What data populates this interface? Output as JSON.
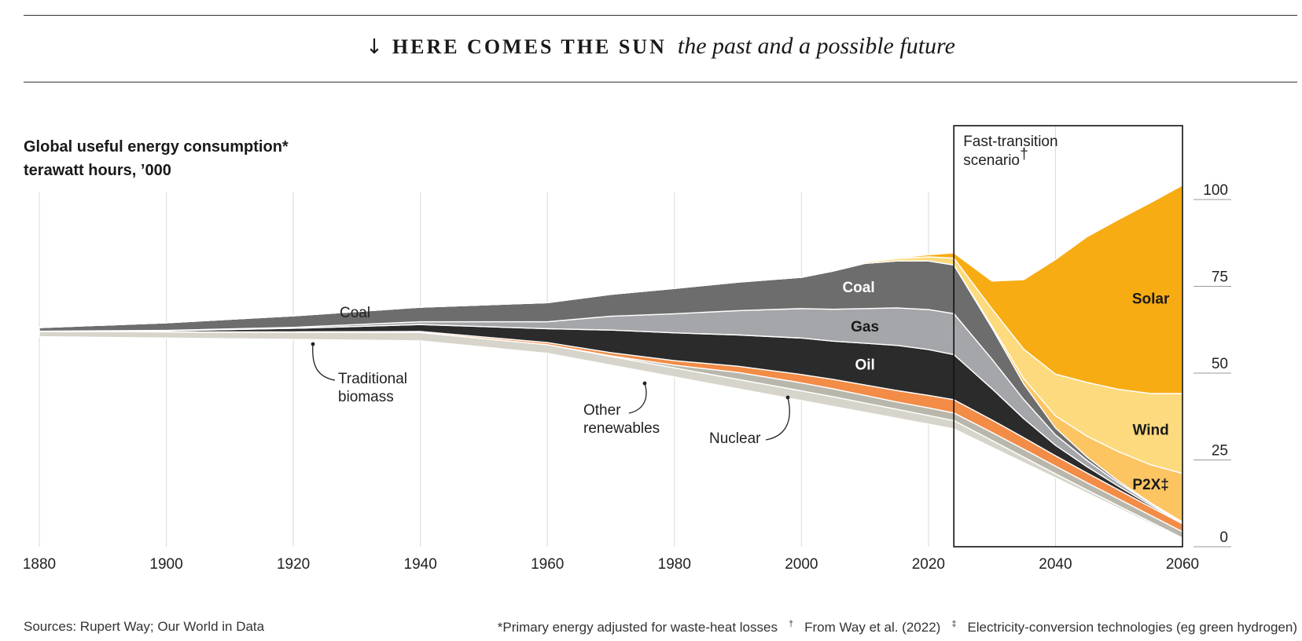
{
  "header": {
    "arrow_glyph": "↓",
    "kicker": "HERE COMES THE SUN",
    "deck": "the past and a possible future"
  },
  "chart_title": {
    "line1": "Global useful energy consumption*",
    "line2": "terawatt hours, ’000"
  },
  "scenario_box": {
    "label_line1": "Fast-transition",
    "label_line2": "scenario",
    "label_mark": "†",
    "x_range": [
      2024,
      2060
    ]
  },
  "footer": {
    "sources": "Sources: Rupert Way; Our World in Data",
    "note_primary": "*Primary energy adjusted for waste-heat losses",
    "note_way_mark": "†",
    "note_way": "From Way et al. (2022)",
    "note_p2x_mark": "‡",
    "note_p2x": "Electricity-conversion technologies (eg green hydrogen)"
  },
  "colors": {
    "solar": "#f7ac14",
    "wind": "#fdda7e",
    "p2x": "#fcc562",
    "oil": "#2b2b2b",
    "coal_historic": "#6d6d6d",
    "coal_late": "#7b7b7d",
    "gas": "#a5a6a9",
    "other_renewables": "#f28c46",
    "nuclear": "#b9b7ac",
    "traditional_biomass": "#d7d5cb",
    "gridline": "#d9d9d9",
    "text": "#1a1a1a"
  },
  "chart_data": {
    "type": "area",
    "title": "Global useful energy consumption*",
    "subtitle": "terawatt hours, ’000",
    "x_axis": {
      "min": 1880,
      "max": 2060,
      "ticks": [
        1880,
        1900,
        1920,
        1940,
        1960,
        1980,
        2000,
        2020,
        2040,
        2060
      ],
      "tick_labels": [
        "1880",
        "1900",
        "1920",
        "1940",
        "1960",
        "1980",
        "2000",
        "2020",
        "2040",
        "2060"
      ]
    },
    "y_axis": {
      "min": 0,
      "max": 100,
      "ticks": [
        0,
        25,
        50,
        75,
        100
      ],
      "tick_labels": [
        "0",
        "25",
        "50",
        "75",
        "100"
      ],
      "position": "right"
    },
    "grid": {
      "vertical": true,
      "horizontal": false
    },
    "layout_note": "streamgraph",
    "x": [
      1880,
      1900,
      1920,
      1940,
      1960,
      1970,
      1980,
      1990,
      2000,
      2005,
      2010,
      2015,
      2020,
      2024,
      2030,
      2035,
      2040,
      2045,
      2050,
      2055,
      2060
    ],
    "series": [
      {
        "name": "Traditional biomass",
        "color": "#d7d5cb",
        "ordering": "bottom",
        "values": [
          1.5,
          1.8,
          2.1,
          2.4,
          2.5,
          2.5,
          2.6,
          2.7,
          2.8,
          2.8,
          2.7,
          2.6,
          2.5,
          2.4,
          2.0,
          1.6,
          1.2,
          0.9,
          0.7,
          0.5,
          0.3
        ]
      },
      {
        "name": "Nuclear",
        "color": "#b9b7ac",
        "values": [
          0,
          0,
          0,
          0,
          0,
          0.2,
          0.8,
          2.0,
          2.3,
          2.3,
          2.2,
          2.1,
          2.2,
          2.2,
          2.3,
          2.3,
          2.2,
          2.1,
          2.0,
          1.9,
          1.8
        ]
      },
      {
        "name": "Other renewables",
        "color": "#f28c46",
        "values": [
          0,
          0,
          0.1,
          0.3,
          0.6,
          0.9,
          1.3,
          1.8,
          2.4,
          2.7,
          3.0,
          3.3,
          3.6,
          3.8,
          3.6,
          3.3,
          3.0,
          2.8,
          2.6,
          2.4,
          2.3
        ]
      },
      {
        "name": "Oil",
        "color": "#2b2b2b",
        "values": [
          0.1,
          0.3,
          1.0,
          2.0,
          4.0,
          6.5,
          8.0,
          9.0,
          10.5,
          11.0,
          12.0,
          13.0,
          13.2,
          13.0,
          9.0,
          5.5,
          3.0,
          1.8,
          1.0,
          0.5,
          0.2
        ]
      },
      {
        "name": "Gas",
        "color": "#a5a6a9",
        "values": [
          0,
          0.1,
          0.3,
          0.8,
          2.0,
          4.0,
          5.5,
          7.0,
          8.5,
          9.2,
          10.0,
          10.8,
          11.5,
          11.8,
          8.5,
          5.5,
          3.0,
          1.8,
          1.0,
          0.5,
          0.2
        ]
      },
      {
        "name": "Coal",
        "color": "#6d6d6d",
        "values": [
          1.0,
          2.2,
          3.3,
          4.2,
          5.5,
          6.3,
          7.3,
          8.2,
          9.0,
          11.0,
          13.0,
          13.5,
          14.0,
          14.0,
          9.0,
          4.5,
          2.0,
          1.0,
          0.5,
          0.2,
          0.1
        ]
      },
      {
        "name": "P2X‡",
        "color": "#fcc562",
        "values": [
          0,
          0,
          0,
          0,
          0,
          0,
          0,
          0,
          0,
          0,
          0,
          0,
          0,
          0,
          0.5,
          1.5,
          3.5,
          6.0,
          8.5,
          11.0,
          14.0
        ]
      },
      {
        "name": "Wind",
        "color": "#fdda7e",
        "values": [
          0,
          0,
          0,
          0,
          0,
          0,
          0,
          0,
          0.1,
          0.2,
          0.4,
          0.7,
          1.2,
          2.0,
          5.0,
          8.5,
          12.0,
          15.5,
          18.0,
          20.5,
          23.0
        ]
      },
      {
        "name": "Solar",
        "color": "#f7ac14",
        "ordering": "top",
        "values": [
          0,
          0,
          0,
          0,
          0,
          0,
          0,
          0,
          0,
          0,
          0,
          0.2,
          0.6,
          1.5,
          8.0,
          20.0,
          33.0,
          42.0,
          49.0,
          55.0,
          60.0
        ]
      }
    ],
    "series_labels_inline": [
      {
        "series": "Coal",
        "text": "Coal"
      },
      {
        "series": "Gas",
        "text": "Gas"
      },
      {
        "series": "Oil",
        "text": "Oil"
      },
      {
        "series": "Solar",
        "text": "Solar"
      },
      {
        "series": "Wind",
        "text": "Wind"
      },
      {
        "series": "P2X‡",
        "text": "P2X‡"
      }
    ],
    "annotations": [
      {
        "text": "Coal"
      },
      {
        "text_line1": "Traditional",
        "text_line2": "biomass"
      },
      {
        "text_line1": "Other",
        "text_line2": "renewables"
      },
      {
        "text": "Nuclear"
      }
    ]
  }
}
